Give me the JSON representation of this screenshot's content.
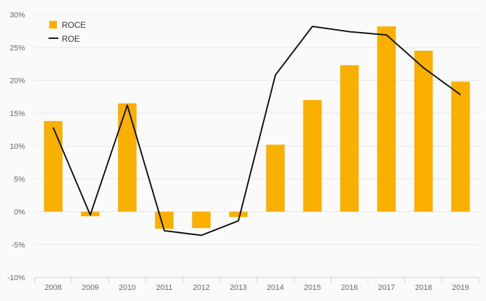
{
  "chart_data": {
    "type": "bar",
    "categories": [
      "2008",
      "2009",
      "2010",
      "2011",
      "2012",
      "2013",
      "2014",
      "2015",
      "2016",
      "2017",
      "2018",
      "2019"
    ],
    "series": [
      {
        "name": "ROCE",
        "type": "bar",
        "color": "#f9b000",
        "values": [
          13.8,
          -0.7,
          16.5,
          -2.6,
          -2.5,
          -0.8,
          10.2,
          17.0,
          22.3,
          28.2,
          24.5,
          19.8
        ]
      },
      {
        "name": "ROE",
        "type": "line",
        "color": "#111111",
        "values": [
          12.8,
          -0.5,
          16.2,
          -2.9,
          -3.6,
          -1.4,
          20.8,
          28.2,
          27.4,
          26.9,
          21.9,
          17.8
        ]
      }
    ],
    "y_ticks": [
      "30%",
      "25%",
      "20%",
      "15%",
      "10%",
      "5%",
      "0%",
      "-5%",
      "-10%"
    ],
    "ylim": [
      -10,
      30
    ],
    "y_unit": "%",
    "grid": true,
    "legend_position": "top-left",
    "title": "",
    "xlabel": "",
    "ylabel": ""
  }
}
